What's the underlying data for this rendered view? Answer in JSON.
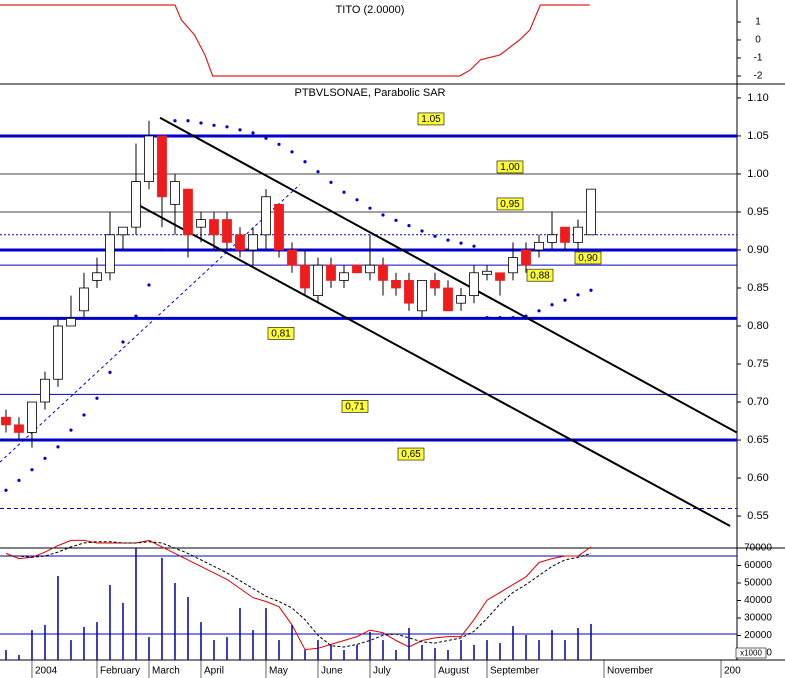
{
  "chart_data": [
    {
      "type": "line",
      "title": "TITO (2.0000)",
      "x": [
        -0.46,
        13,
        13.5,
        14.5,
        15.3,
        15.9,
        34.9,
        35.7,
        36.5,
        38,
        39.5,
        40.3,
        41.1,
        44.9
      ],
      "values": [
        1.94,
        1.94,
        1.1,
        0.28,
        -0.83,
        -2,
        -2,
        -1.67,
        -1.1,
        -0.83,
        0,
        0.56,
        1.94,
        1.94
      ],
      "color": "#e02020",
      "xlim": [
        -0.46,
        56.23
      ],
      "ylim": [
        -2.39,
        2.22
      ],
      "yticks": [
        1,
        0,
        -1,
        -2
      ]
    },
    {
      "type": "candlestick",
      "title": "PTBVLSONAE, Parabolic SAR",
      "open": [
        0.68,
        0.67,
        0.66,
        0.7,
        0.73,
        0.8,
        0.82,
        0.86,
        0.87,
        0.92,
        0.93,
        0.99,
        1.05,
        0.96,
        0.98,
        0.93,
        0.94,
        0.94,
        0.92,
        0.9,
        0.92,
        0.96,
        0.9,
        0.88,
        0.84,
        0.88,
        0.86,
        0.88,
        0.87,
        0.88,
        0.86,
        0.86,
        0.82,
        0.86,
        0.85,
        0.83,
        0.84,
        0.868,
        0.87,
        0.87,
        0.9,
        0.9,
        0.91,
        0.93,
        0.91,
        0.92
      ],
      "high": [
        0.69,
        0.68,
        0.7,
        0.74,
        0.81,
        0.84,
        0.87,
        0.89,
        0.95,
        0.93,
        1.04,
        1.07,
        1.05,
        1.0,
        0.98,
        0.95,
        0.95,
        0.95,
        0.93,
        0.93,
        0.98,
        0.96,
        0.91,
        0.9,
        0.89,
        0.89,
        0.88,
        0.88,
        0.92,
        0.89,
        0.87,
        0.87,
        0.86,
        0.87,
        0.86,
        0.85,
        0.88,
        0.88,
        0.87,
        0.91,
        0.91,
        0.92,
        0.95,
        0.93,
        0.94,
        0.98
      ],
      "low": [
        0.66,
        0.65,
        0.64,
        0.69,
        0.72,
        0.8,
        0.81,
        0.85,
        0.86,
        0.9,
        0.92,
        0.98,
        0.93,
        0.92,
        0.89,
        0.91,
        0.9,
        0.9,
        0.89,
        0.88,
        0.9,
        0.89,
        0.87,
        0.84,
        0.83,
        0.85,
        0.85,
        0.87,
        0.86,
        0.84,
        0.84,
        0.82,
        0.81,
        0.84,
        0.82,
        0.82,
        0.83,
        0.86,
        0.84,
        0.86,
        0.87,
        0.89,
        0.9,
        0.9,
        0.9,
        0.92
      ],
      "close": [
        0.67,
        0.66,
        0.7,
        0.73,
        0.8,
        0.81,
        0.85,
        0.87,
        0.92,
        0.93,
        0.99,
        1.05,
        0.97,
        0.99,
        0.92,
        0.94,
        0.92,
        0.91,
        0.9,
        0.92,
        0.97,
        0.9,
        0.88,
        0.85,
        0.88,
        0.86,
        0.87,
        0.87,
        0.88,
        0.86,
        0.85,
        0.83,
        0.86,
        0.85,
        0.82,
        0.84,
        0.87,
        0.872,
        0.86,
        0.89,
        0.88,
        0.91,
        0.92,
        0.91,
        0.93,
        0.98
      ],
      "up_color": "#ffffff",
      "down_color": "#ee1c1c",
      "xlim": [
        -0.46,
        56.23
      ],
      "ylim": [
        0.508,
        1.117
      ],
      "yticks": [
        {
          "value": 1.1,
          "label": "1.10"
        },
        1.05,
        {
          "value": 1,
          "label": "1.00"
        },
        0.95,
        {
          "value": 0.9,
          "label": "0.90"
        },
        0.85,
        {
          "value": 0.8,
          "label": "0.80"
        },
        0.75,
        {
          "value": 0.7,
          "label": "0.70"
        },
        0.65,
        {
          "value": 0.6,
          "label": "0.60"
        },
        0.55
      ],
      "sar": {
        "color": "#0000cc",
        "values": [
          0.584,
          0.597,
          0.611,
          0.626,
          0.641,
          0.663,
          0.683,
          0.705,
          0.739,
          0.779,
          0.813,
          0.854,
          0.9,
          1.07,
          1.07,
          1.067,
          1.064,
          1.062,
          1.058,
          1.054,
          1.047,
          1.039,
          1.029,
          1.016,
          1.003,
          0.989,
          0.976,
          0.966,
          0.955,
          0.946,
          0.939,
          0.932,
          0.925,
          0.918,
          0.913,
          0.909,
          0.905,
          0.811,
          0.811,
          0.811,
          0.813,
          0.82,
          0.828,
          0.834,
          0.841,
          0.847
        ]
      },
      "levels": [
        {
          "value": 1.05,
          "label": "1.05",
          "color": "#0000cc",
          "style": "thick"
        },
        {
          "value": 1,
          "label": "1,00",
          "color": "#444444",
          "style": "thin"
        },
        {
          "value": 0.95,
          "label": "0,95",
          "color": "#444444",
          "style": "thin"
        },
        {
          "value": 0.92,
          "color": "#0000cc",
          "style": "dotted"
        },
        {
          "value": 0.9,
          "label": "0,90",
          "color": "#0000cc",
          "style": "thick"
        },
        {
          "value": 0.88,
          "label": "0,88",
          "color": "#0000cc",
          "style": "thin"
        },
        {
          "value": 0.81,
          "label": "0,81",
          "color": "#0000cc",
          "style": "thick"
        },
        {
          "value": 0.71,
          "label": "0,71",
          "color": "#0000cc",
          "style": "thin"
        },
        {
          "value": 0.65,
          "label": "0,65",
          "color": "#0000cc",
          "style": "thick"
        },
        {
          "value": 0.56,
          "color": "#0000cc",
          "style": "dashed"
        }
      ],
      "trendlines": [
        {
          "x": [
            11.85,
            56.2
          ],
          "values": [
            1.074,
            0.66
          ],
          "color": "#000000"
        },
        {
          "x": [
            10.1,
            55.7
          ],
          "values": [
            0.96,
            0.537
          ],
          "color": "#000000"
        },
        {
          "x": [
            -0.46,
            22.6
          ],
          "values": [
            0.621,
            0.986
          ],
          "color": "#0000cc",
          "dash": true
        }
      ]
    },
    {
      "type": "bar",
      "unit_label": "x1000",
      "values": [
        11700,
        8900,
        23100,
        26000,
        54000,
        17400,
        24900,
        27700,
        48900,
        38600,
        74600,
        19100,
        64300,
        50000,
        42000,
        27700,
        17400,
        19100,
        35700,
        23100,
        35700,
        17400,
        26000,
        11700,
        17400,
        14600,
        11700,
        14600,
        22000,
        17400,
        11700,
        24300,
        14600,
        12900,
        11700,
        17400,
        14600,
        17400,
        15700,
        25400,
        20300,
        17400,
        23100,
        17400,
        24300,
        26600
      ],
      "color": "#0000aa",
      "xlim": [
        -0.46,
        56.23
      ],
      "ylim": [
        6000,
        70000
      ],
      "yticks": [
        70000,
        60000,
        50000,
        40000,
        30000,
        20000,
        10000
      ],
      "xticks": [
        {
          "value": 2,
          "label": "2004"
        },
        {
          "value": 7,
          "label": "February"
        },
        {
          "value": 11,
          "label": "March"
        },
        {
          "value": 15,
          "label": "April"
        },
        {
          "value": 20,
          "label": "May"
        },
        {
          "value": 24,
          "label": "June"
        },
        {
          "value": 28,
          "label": "July"
        },
        {
          "value": 33,
          "label": "August"
        },
        {
          "value": 37,
          "label": "September"
        },
        {
          "value": 46,
          "label": "November"
        },
        {
          "value": 55,
          "label": "200"
        }
      ],
      "oscillator": {
        "y2lim": [
          0,
          95
        ],
        "levels": [
          80,
          20
        ],
        "level_color": "#0000cc",
        "series": [
          {
            "color": "#e00000",
            "values": [
              82,
              78,
              79,
              83,
              88,
              92,
              92,
              90,
              90,
              90,
              90,
              92,
              87,
              82,
              77,
              72,
              67,
              62,
              55,
              48,
              45,
              41,
              27,
              8,
              9,
              12,
              15,
              18,
              23,
              21,
              15,
              10,
              15,
              17,
              18,
              18,
              31,
              46,
              52,
              58,
              64,
              75,
              78,
              80,
              80,
              87
            ]
          },
          {
            "color": "#000000",
            "dash": true,
            "values": [
              80,
              80,
              79,
              80,
              83,
              87,
              90,
              91,
              91,
              90,
              90,
              91,
              90,
              86,
              82,
              77,
              72,
              67,
              61,
              55,
              49,
              45,
              40,
              31,
              19,
              11,
              10,
              12,
              15,
              19,
              20,
              17,
              14,
              13,
              15,
              17,
              22,
              32,
              43,
              52,
              58,
              65,
              72,
              77,
              79,
              82
            ]
          }
        ]
      }
    }
  ]
}
